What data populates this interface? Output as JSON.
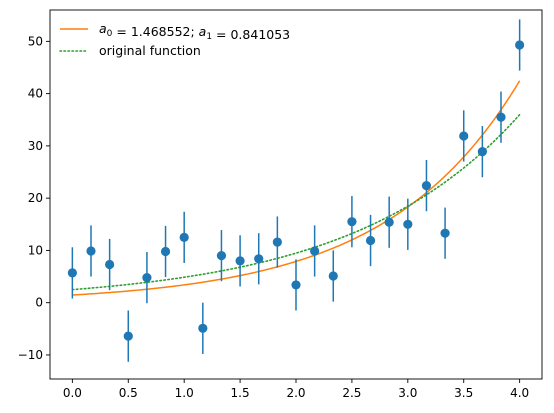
{
  "chart_data": {
    "type": "scatter",
    "xlim": [
      -0.2,
      4.2
    ],
    "ylim": [
      -14.6,
      56.0
    ],
    "grid": false,
    "legend_placement": "top-left",
    "xticks": [
      0.0,
      0.5,
      1.0,
      1.5,
      2.0,
      2.5,
      3.0,
      3.5,
      4.0
    ],
    "xtick_labels": [
      "0.0",
      "0.5",
      "1.0",
      "1.5",
      "2.0",
      "2.5",
      "3.0",
      "3.5",
      "4.0"
    ],
    "yticks": [
      -10,
      0,
      10,
      20,
      30,
      40,
      50
    ],
    "ytick_labels": [
      "−10",
      "0",
      "10",
      "20",
      "30",
      "40",
      "50"
    ],
    "data_points": {
      "color": "#1f77b4",
      "error": 4.9,
      "x": [
        0.0,
        0.1667,
        0.3333,
        0.5,
        0.6667,
        0.8333,
        1.0,
        1.1667,
        1.3333,
        1.5,
        1.6667,
        1.8333,
        2.0,
        2.1667,
        2.3333,
        2.5,
        2.6667,
        2.8333,
        3.0,
        3.1667,
        3.3333,
        3.5,
        3.6667,
        3.8333,
        4.0
      ],
      "y": [
        5.7,
        9.9,
        7.3,
        -6.4,
        4.8,
        9.8,
        12.5,
        -4.9,
        9.0,
        8.0,
        8.4,
        11.6,
        3.4,
        9.9,
        5.1,
        15.5,
        11.9,
        15.4,
        15.0,
        22.4,
        13.3,
        31.9,
        28.9,
        35.5,
        49.3
      ]
    },
    "series": [
      {
        "label_parts": [
          {
            "text": "a",
            "style": "italic"
          },
          {
            "text": "0",
            "style": "sub"
          },
          {
            "text": " =  1.468552; ",
            "style": "normal"
          },
          {
            "text": "a",
            "style": "italic"
          },
          {
            "text": "1",
            "style": "sub"
          },
          {
            "text": " =  0.841053",
            "style": "normal"
          }
        ],
        "a0": 1.468552,
        "a1": 0.841053,
        "color": "#ff7f0e",
        "line_style": "solid",
        "x_range": [
          0,
          4
        ]
      },
      {
        "name": "original function",
        "a0": 2.5,
        "a1": 0.666667,
        "color": "#2ca02c",
        "line_style": "dotted",
        "x_range": [
          0,
          4
        ]
      }
    ]
  }
}
